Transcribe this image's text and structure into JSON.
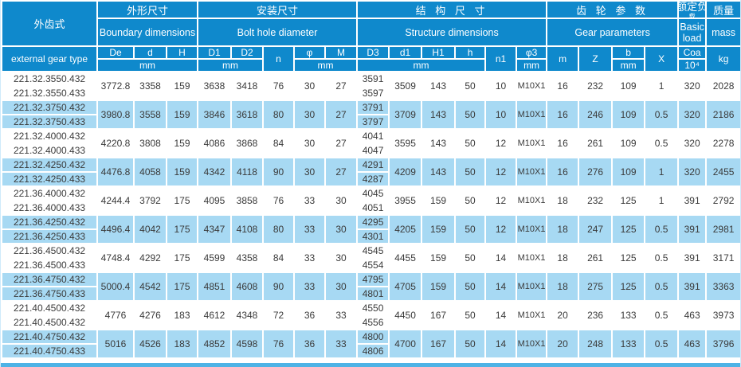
{
  "colors": {
    "header_blue": "#0f89cc",
    "row_blue": "#a7d9f3",
    "bottom_strip_blue": "#4db3e6",
    "text_dark": "#3a3a3a"
  },
  "header": {
    "model_zh": "外齿式",
    "model_en": "external gear type",
    "groups": {
      "boundary": {
        "zh": "外形尺寸",
        "en": "Boundary dimensions"
      },
      "bolt": {
        "zh": "安装尺寸",
        "en": "Bolt hole diameter"
      },
      "structure": {
        "zh": "结 构 尺 寸",
        "en": "Structure dimensions"
      },
      "gear": {
        "zh": "齿 轮 参 数",
        "en": "Gear parameters"
      },
      "load": {
        "zh": "额定负",
        "zh_clip": "载",
        "en": "Basic load"
      },
      "mass": {
        "zh": "质量",
        "en": "mass"
      }
    },
    "cols": {
      "De": "De",
      "d": "d",
      "H": "H",
      "D1": "D1",
      "D2": "D2",
      "n": "n",
      "phi": "φ",
      "M": "M",
      "D3": "D3",
      "d1": "d1",
      "H1": "H1",
      "h": "h",
      "n1": "n1",
      "phi3": "φ3",
      "m": "m",
      "Z": "Z",
      "b": "b",
      "X": "X",
      "Coa": "Coa",
      "kg": "kg"
    },
    "units": {
      "mm": "mm",
      "e4": "10⁴"
    }
  },
  "rows": [
    {
      "models": [
        "221.32.3550.432",
        "221.32.3550.433"
      ],
      "De": "3772.8",
      "d": "3358",
      "H": "159",
      "D1": "3638",
      "D2": "3418",
      "n": "76",
      "phi": "30",
      "M": "27",
      "D3": [
        "3591",
        "3597"
      ],
      "d1": "3509",
      "H1": "143",
      "h": "50",
      "n1": "10",
      "phi3": "M10X1",
      "m": "16",
      "Z": "232",
      "b": "109",
      "X": "1",
      "Coa": "320",
      "kg": "2028"
    },
    {
      "models": [
        "221.32.3750.432",
        "221.32.3750.433"
      ],
      "De": "3980.8",
      "d": "3558",
      "H": "159",
      "D1": "3846",
      "D2": "3618",
      "n": "80",
      "phi": "30",
      "M": "27",
      "D3": [
        "3791",
        "3797"
      ],
      "d1": "3709",
      "H1": "143",
      "h": "50",
      "n1": "10",
      "phi3": "M10X1",
      "m": "16",
      "Z": "246",
      "b": "109",
      "X": "0.5",
      "Coa": "320",
      "kg": "2186"
    },
    {
      "models": [
        "221.32.4000.432",
        "221.32.4000.433"
      ],
      "De": "4220.8",
      "d": "3808",
      "H": "159",
      "D1": "4086",
      "D2": "3868",
      "n": "84",
      "phi": "30",
      "M": "27",
      "D3": [
        "4041",
        "4047"
      ],
      "d1": "3595",
      "H1": "143",
      "h": "50",
      "n1": "12",
      "phi3": "M10X1",
      "m": "16",
      "Z": "261",
      "b": "109",
      "X": "0.5",
      "Coa": "320",
      "kg": "2278"
    },
    {
      "models": [
        "221.32.4250.432",
        "221.32.4250.433"
      ],
      "De": "4476.8",
      "d": "4058",
      "H": "159",
      "D1": "4342",
      "D2": "4118",
      "n": "90",
      "phi": "30",
      "M": "27",
      "D3": [
        "4291",
        "4287"
      ],
      "d1": "4209",
      "H1": "143",
      "h": "50",
      "n1": "12",
      "phi3": "M10X1",
      "m": "16",
      "Z": "276",
      "b": "109",
      "X": "1",
      "Coa": "320",
      "kg": "2455"
    },
    {
      "models": [
        "221.36.4000.432",
        "221.36.4000.433"
      ],
      "De": "4244.4",
      "d": "3792",
      "H": "175",
      "D1": "4095",
      "D2": "3858",
      "n": "76",
      "phi": "33",
      "M": "30",
      "D3": [
        "4045",
        "4051"
      ],
      "d1": "3955",
      "H1": "159",
      "h": "50",
      "n1": "12",
      "phi3": "M10X1",
      "m": "18",
      "Z": "232",
      "b": "125",
      "X": "1",
      "Coa": "391",
      "kg": "2792"
    },
    {
      "models": [
        "221.36.4250.432",
        "221.36.4250.433"
      ],
      "De": "4496.4",
      "d": "4042",
      "H": "175",
      "D1": "4347",
      "D2": "4108",
      "n": "80",
      "phi": "33",
      "M": "30",
      "D3": [
        "4295",
        "4301"
      ],
      "d1": "4205",
      "H1": "159",
      "h": "50",
      "n1": "12",
      "phi3": "M10X1",
      "m": "18",
      "Z": "247",
      "b": "125",
      "X": "0.5",
      "Coa": "391",
      "kg": "2981"
    },
    {
      "models": [
        "221.36.4500.432",
        "221.36.4500.433"
      ],
      "De": "4748.4",
      "d": "4292",
      "H": "175",
      "D1": "4599",
      "D2": "4358",
      "n": "84",
      "phi": "33",
      "M": "30",
      "D3": [
        "4545",
        "4554"
      ],
      "d1": "4455",
      "H1": "159",
      "h": "50",
      "n1": "14",
      "phi3": "M10X1",
      "m": "18",
      "Z": "261",
      "b": "125",
      "X": "0.5",
      "Coa": "391",
      "kg": "3171"
    },
    {
      "models": [
        "221.36.4750.432",
        "221.36.4750.433"
      ],
      "De": "5000.4",
      "d": "4542",
      "H": "175",
      "D1": "4851",
      "D2": "4608",
      "n": "90",
      "phi": "33",
      "M": "30",
      "D3": [
        "4795",
        "4801"
      ],
      "d1": "4705",
      "H1": "159",
      "h": "50",
      "n1": "14",
      "phi3": "M10X1",
      "m": "18",
      "Z": "275",
      "b": "125",
      "X": "0.5",
      "Coa": "391",
      "kg": "3363"
    },
    {
      "models": [
        "221.40.4500.432",
        "221.40.4500.432"
      ],
      "De": "4776",
      "d": "4276",
      "H": "183",
      "D1": "4612",
      "D2": "4348",
      "n": "72",
      "phi": "36",
      "M": "33",
      "D3": [
        "4550",
        "4556"
      ],
      "d1": "4450",
      "H1": "167",
      "h": "50",
      "n1": "14",
      "phi3": "M10X1",
      "m": "20",
      "Z": "236",
      "b": "133",
      "X": "0.5",
      "Coa": "463",
      "kg": "3973"
    },
    {
      "models": [
        "221.40.4750.432",
        "221.40.4750.433"
      ],
      "De": "5016",
      "d": "4526",
      "H": "183",
      "D1": "4852",
      "D2": "4598",
      "n": "76",
      "phi": "36",
      "M": "33",
      "D3": [
        "4800",
        "4806"
      ],
      "d1": "4700",
      "H1": "167",
      "h": "50",
      "n1": "14",
      "phi3": "M10X1",
      "m": "20",
      "Z": "248",
      "b": "133",
      "X": "0.5",
      "Coa": "463",
      "kg": "3796"
    }
  ]
}
